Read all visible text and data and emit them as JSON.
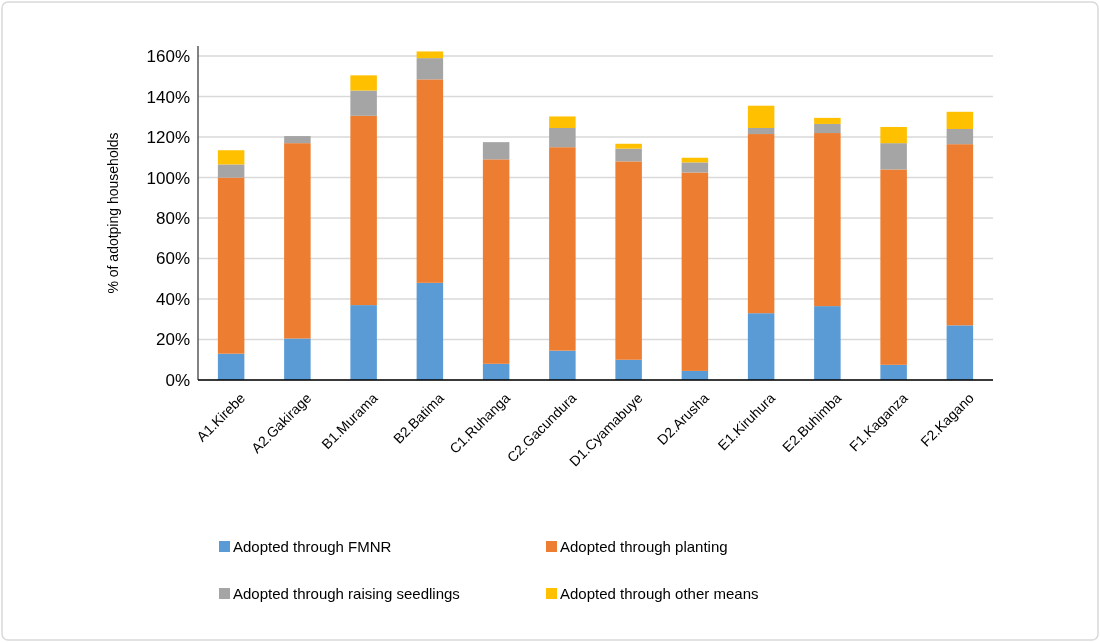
{
  "chart_data": {
    "type": "bar",
    "stacked": true,
    "ylabel": "% of adotping households",
    "categories": [
      "A1.Kirebe",
      "A2.Gakirage",
      "B1.Murama",
      "B2.Batima",
      "C1.Ruhanga",
      "C2.Gacundura",
      "D1.Cyamabuye",
      "D2.Arusha",
      "E1.Kiruhura",
      "E2.Buhimba",
      "F1.Kaganza",
      "F2.Kagano"
    ],
    "series": [
      {
        "name": "Adopted through FMNR",
        "color": "#5b9bd5",
        "values": [
          13,
          20.5,
          37,
          48,
          8,
          14.5,
          10,
          4.5,
          33,
          36.5,
          7.5,
          27
        ]
      },
      {
        "name": "Adopted through planting",
        "color": "#ed7d31",
        "values": [
          87,
          96.5,
          93.5,
          100.5,
          101,
          100.5,
          98,
          98,
          88.5,
          85.5,
          96.5,
          89.5
        ]
      },
      {
        "name": "Adopted through raising seedlings",
        "color": "#a5a5a5",
        "values": [
          6.5,
          3.5,
          12.5,
          10.5,
          8.5,
          9.5,
          6.3,
          5,
          3,
          4.5,
          13,
          7.5
        ]
      },
      {
        "name": "Adopted through other means",
        "color": "#ffc000",
        "values": [
          7,
          0,
          7.5,
          3.3,
          0,
          5.7,
          2.4,
          2.3,
          11,
          3,
          8,
          8.5
        ]
      }
    ],
    "ylim": [
      0,
      165
    ],
    "yticks": [
      {
        "value": 0,
        "label": "0%"
      },
      {
        "value": 20,
        "label": "20%"
      },
      {
        "value": 40,
        "label": "40%"
      },
      {
        "value": 60,
        "label": "60%"
      },
      {
        "value": 80,
        "label": "80%"
      },
      {
        "value": 100,
        "label": "100%"
      },
      {
        "value": 120,
        "label": "120%"
      },
      {
        "value": 140,
        "label": "140%"
      },
      {
        "value": 160,
        "label": "160%"
      }
    ],
    "grid": "y",
    "legend": "bottom"
  }
}
